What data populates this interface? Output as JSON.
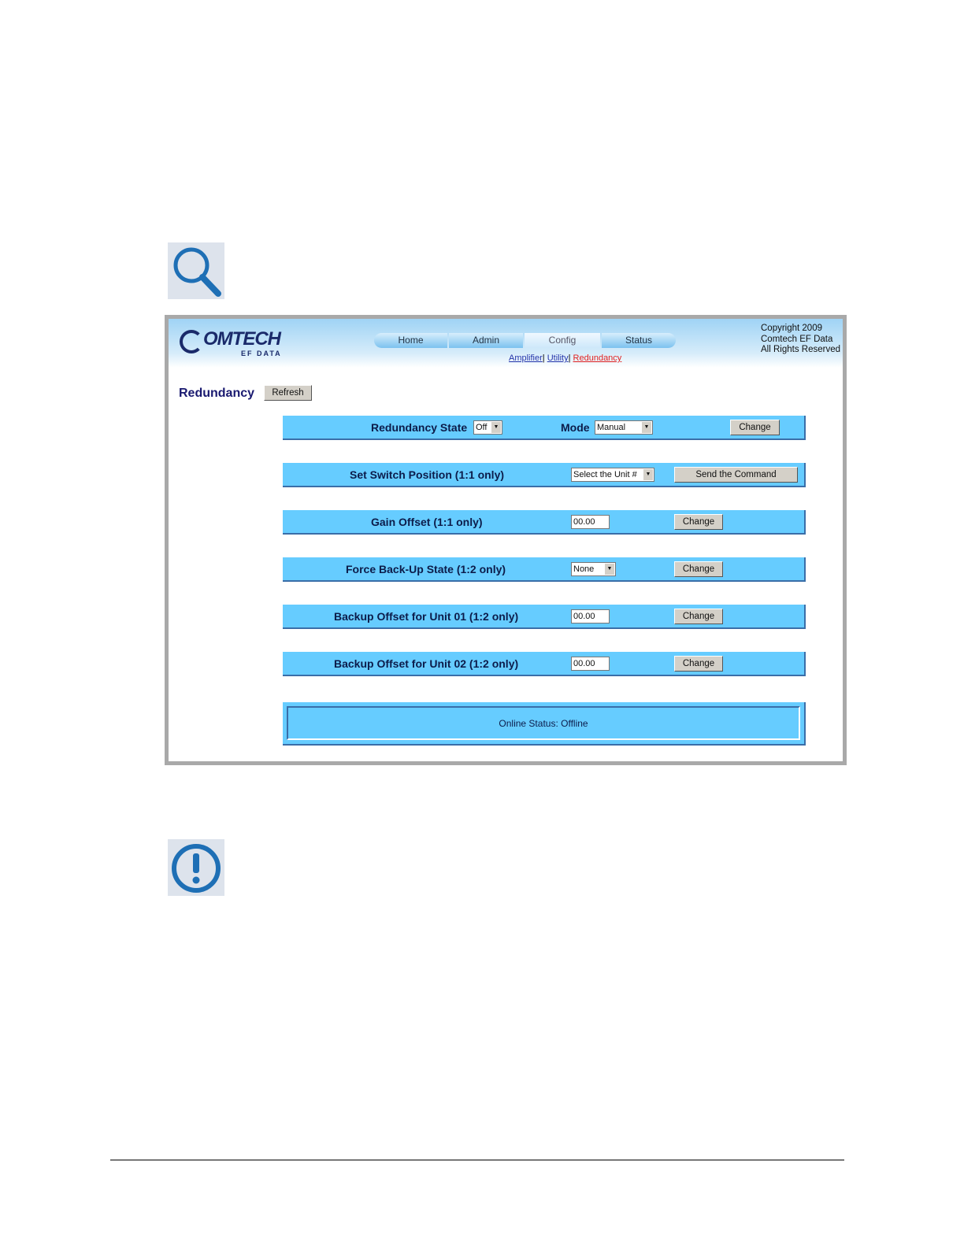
{
  "header": {
    "logo_text": "OMTECH",
    "logo_sub": "EF DATA",
    "nav": [
      {
        "label": "Home"
      },
      {
        "label": "Admin"
      },
      {
        "label": "Config"
      },
      {
        "label": "Status"
      }
    ],
    "subnav": [
      {
        "label": "Amplifier"
      },
      {
        "label": "Utility"
      },
      {
        "label": "Redundancy"
      }
    ],
    "copyright": [
      "Copyright 2009",
      "Comtech EF Data",
      "All Rights Reserved"
    ]
  },
  "page": {
    "title": "Redundancy",
    "refresh_label": "Refresh"
  },
  "rows": [
    {
      "label": "Redundancy State",
      "state_value": "Off",
      "mode_label": "Mode",
      "mode_value": "Manual",
      "button": "Change"
    },
    {
      "label": "Set Switch Position (1:1 only)",
      "select_value": "Select the Unit #",
      "button": "Send the Command"
    },
    {
      "label": "Gain Offset (1:1 only)",
      "input_value": "00.00",
      "button": "Change"
    },
    {
      "label": "Force Back-Up State (1:2 only)",
      "select_value": "None",
      "button": "Change"
    },
    {
      "label": "Backup Offset for Unit 01 (1:2 only)",
      "input_value": "00.00",
      "button": "Change"
    },
    {
      "label": "Backup Offset for Unit 02 (1:2 only)",
      "input_value": "00.00",
      "button": "Change"
    }
  ],
  "status": {
    "text": "Online Status: Offline"
  },
  "icons": {
    "note": "magnifier-icon",
    "caution": "exclamation-icon"
  }
}
